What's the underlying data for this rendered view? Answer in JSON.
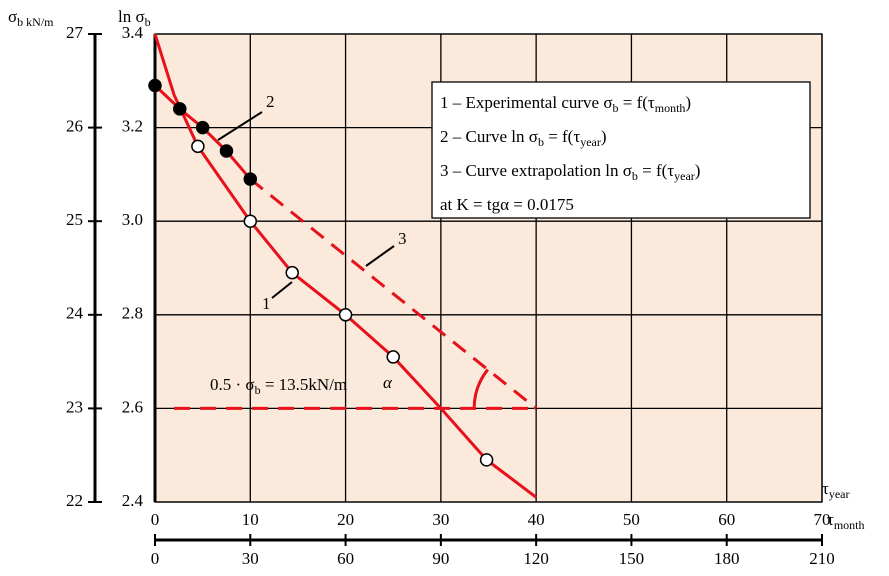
{
  "chart_data": {
    "type": "line",
    "y_title": [
      "ln σ",
      "b"
    ],
    "y2_title": [
      "σ",
      "b kN/m"
    ],
    "x_title": [
      "τ",
      "month"
    ],
    "x_title_top": [
      "τ",
      "year"
    ],
    "xlim": [
      0,
      70
    ],
    "xticks": [
      0,
      10,
      20,
      30,
      40,
      50,
      60,
      70
    ],
    "x2lim": [
      0,
      210
    ],
    "x2ticks": [
      0,
      30,
      60,
      90,
      120,
      150,
      180,
      210
    ],
    "ylim": [
      2.4,
      3.4
    ],
    "yticks": [
      2.4,
      2.6,
      2.8,
      {
        "value": 3,
        "label": "3.0"
      },
      3.2,
      3.4
    ],
    "y2lim": [
      22,
      27
    ],
    "y2ticks": [
      22,
      23,
      24,
      25,
      26,
      27
    ],
    "grid": true,
    "background": "#fbeadb",
    "series": [
      {
        "name": "1",
        "color": "#e8101a",
        "dash": false,
        "x": [
          0,
          2,
          4.5,
          10,
          14.4,
          20,
          25,
          30,
          34.8,
          40
        ],
        "values": [
          3.4,
          3.27,
          3.16,
          3.0,
          2.89,
          2.8,
          2.71,
          2.6,
          2.49,
          2.41
        ]
      },
      {
        "name": "2",
        "color": "#e8101a",
        "dash": false,
        "x": [
          0,
          2.6,
          5,
          7.5,
          10
        ],
        "values": [
          3.29,
          3.24,
          3.2,
          3.15,
          3.09
        ]
      },
      {
        "name": "3",
        "color": "#e8101a",
        "dash": true,
        "x": [
          10,
          40
        ],
        "values": [
          3.09,
          2.6
        ]
      }
    ],
    "markers": [
      {
        "fill": "#ffffff",
        "x": [
          4.5,
          10,
          14.4,
          20,
          25,
          34.8
        ],
        "values": [
          3.16,
          3.0,
          2.89,
          2.8,
          2.71,
          2.49
        ]
      },
      {
        "fill": "#000000",
        "x": [
          0,
          2.6,
          5,
          7.5,
          10
        ],
        "values": [
          3.29,
          3.24,
          3.2,
          3.15,
          3.09
        ]
      }
    ],
    "level": {
      "value": 2.6,
      "x": [
        2,
        40
      ],
      "label": [
        "0.5 · σ",
        "b",
        " = 13.5kN/m"
      ]
    },
    "angle_label": "α",
    "legend_lines": [
      [
        "1 – Experimental curve  σ",
        "b",
        " = f(τ",
        "month",
        ")"
      ],
      [
        "2 – Curve  ln σ",
        "b",
        " = f(τ",
        "year",
        ")"
      ],
      [
        "3 – Curve extrapolation  ln σ",
        "b",
        " = f(τ",
        "year",
        ")"
      ],
      [
        "at  K = tgα = 0.0175"
      ]
    ]
  }
}
